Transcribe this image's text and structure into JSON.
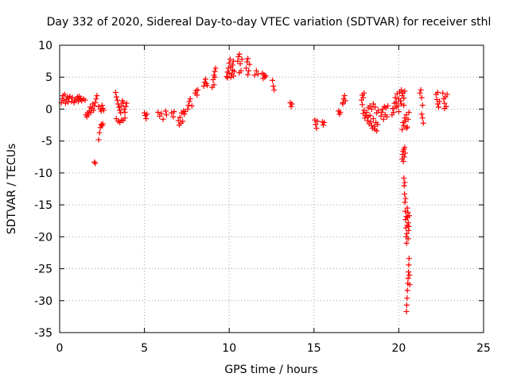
{
  "chart_data": {
    "type": "scatter",
    "title": "Day 332 of 2020, Sidereal Day-to-day VTEC variation (SDTVAR) for receiver sthl",
    "xlabel": "GPS time / hours",
    "ylabel": "SDTVAR / TECUs",
    "xlim": [
      0,
      25
    ],
    "ylim": [
      -35,
      10
    ],
    "xticks": [
      0,
      5,
      10,
      15,
      20,
      25
    ],
    "yticks": [
      10,
      5,
      0,
      -5,
      -10,
      -15,
      -20,
      -25,
      -30,
      -35
    ],
    "grid": true,
    "marker": "+",
    "color": "#ff0000",
    "series": [
      {
        "name": "SDTVAR",
        "points": [
          [
            0.1,
            1.0
          ],
          [
            0.15,
            1.6
          ],
          [
            0.2,
            2.1
          ],
          [
            0.25,
            1.3
          ],
          [
            0.3,
            2.3
          ],
          [
            0.35,
            0.9
          ],
          [
            0.4,
            1.5
          ],
          [
            0.45,
            1.9
          ],
          [
            0.5,
            1.1
          ],
          [
            0.55,
            1.7
          ],
          [
            0.6,
            2.0
          ],
          [
            0.7,
            1.2
          ],
          [
            0.75,
            1.8
          ],
          [
            0.85,
            1.0
          ],
          [
            0.9,
            1.4
          ],
          [
            1.0,
            1.6
          ],
          [
            1.05,
            1.9
          ],
          [
            1.1,
            1.2
          ],
          [
            1.15,
            2.0
          ],
          [
            1.2,
            1.5
          ],
          [
            1.25,
            1.7
          ],
          [
            1.3,
            1.3
          ],
          [
            1.4,
            1.6
          ],
          [
            1.5,
            1.4
          ],
          [
            1.55,
            -0.9
          ],
          [
            1.6,
            -1.2
          ],
          [
            1.65,
            -0.6
          ],
          [
            1.7,
            -0.9
          ],
          [
            1.75,
            -0.3
          ],
          [
            1.8,
            0.3
          ],
          [
            1.85,
            -0.5
          ],
          [
            1.9,
            0.1
          ],
          [
            1.95,
            0.8
          ],
          [
            2.0,
            -0.2
          ],
          [
            2.05,
            0.5
          ],
          [
            2.1,
            1.0
          ],
          [
            2.15,
            1.6
          ],
          [
            2.2,
            2.1
          ],
          [
            2.05,
            -8.3
          ],
          [
            2.1,
            -8.5
          ],
          [
            2.3,
            -4.8
          ],
          [
            2.35,
            -3.7
          ],
          [
            2.4,
            -2.9
          ],
          [
            2.45,
            -2.4
          ],
          [
            2.5,
            -2.6
          ],
          [
            2.55,
            -2.3
          ],
          [
            2.3,
            0.4
          ],
          [
            2.4,
            0.0
          ],
          [
            2.45,
            -0.3
          ],
          [
            2.5,
            0.6
          ],
          [
            2.55,
            0.1
          ],
          [
            2.6,
            -0.2
          ],
          [
            3.3,
            2.6
          ],
          [
            3.35,
            1.9
          ],
          [
            3.4,
            1.4
          ],
          [
            3.45,
            0.8
          ],
          [
            3.5,
            0.3
          ],
          [
            3.55,
            -0.2
          ],
          [
            3.6,
            -0.6
          ],
          [
            3.65,
            0.5
          ],
          [
            3.7,
            1.3
          ],
          [
            3.75,
            1.0
          ],
          [
            3.8,
            0.0
          ],
          [
            3.85,
            -0.5
          ],
          [
            3.9,
            0.4
          ],
          [
            3.95,
            0.9
          ],
          [
            3.35,
            -1.5
          ],
          [
            3.45,
            -1.9
          ],
          [
            3.55,
            -2.1
          ],
          [
            3.65,
            -1.7
          ],
          [
            3.75,
            -1.8
          ],
          [
            3.85,
            -1.4
          ],
          [
            5.0,
            -0.6
          ],
          [
            5.05,
            -1.0
          ],
          [
            5.1,
            -1.5
          ],
          [
            5.15,
            -0.8
          ],
          [
            5.8,
            -0.5
          ],
          [
            5.9,
            -1.1
          ],
          [
            6.0,
            -0.7
          ],
          [
            6.1,
            -1.6
          ],
          [
            6.25,
            -0.3
          ],
          [
            6.3,
            -0.9
          ],
          [
            6.6,
            -0.6
          ],
          [
            6.7,
            -1.2
          ],
          [
            6.75,
            -0.4
          ],
          [
            7.0,
            -1.8
          ],
          [
            7.05,
            -2.5
          ],
          [
            7.1,
            -1.3
          ],
          [
            7.15,
            -2.2
          ],
          [
            7.2,
            -0.6
          ],
          [
            7.25,
            -1.9
          ],
          [
            7.3,
            -0.3
          ],
          [
            7.35,
            -0.8
          ],
          [
            7.4,
            -0.4
          ],
          [
            7.55,
            0.0
          ],
          [
            7.6,
            0.6
          ],
          [
            7.65,
            1.2
          ],
          [
            7.7,
            1.6
          ],
          [
            7.8,
            0.5
          ],
          [
            8.0,
            2.5
          ],
          [
            8.05,
            2.9
          ],
          [
            8.1,
            2.2
          ],
          [
            8.15,
            3.0
          ],
          [
            8.5,
            3.6
          ],
          [
            8.55,
            4.2
          ],
          [
            8.6,
            4.7
          ],
          [
            8.65,
            4.0
          ],
          [
            8.7,
            3.7
          ],
          [
            9.0,
            3.4
          ],
          [
            9.05,
            4.6
          ],
          [
            9.1,
            5.3
          ],
          [
            9.15,
            5.9
          ],
          [
            9.2,
            6.4
          ],
          [
            9.1,
            3.8
          ],
          [
            9.15,
            5.0
          ],
          [
            9.85,
            5.1
          ],
          [
            9.9,
            5.8
          ],
          [
            9.95,
            6.4
          ],
          [
            10.0,
            7.2
          ],
          [
            10.05,
            7.8
          ],
          [
            10.1,
            6.6
          ],
          [
            10.15,
            5.5
          ],
          [
            10.2,
            6.9
          ],
          [
            10.25,
            5.2
          ],
          [
            10.3,
            5.9
          ],
          [
            9.9,
            4.9
          ],
          [
            10.0,
            5.6
          ],
          [
            10.1,
            5.0
          ],
          [
            10.2,
            6.1
          ],
          [
            10.25,
            7.5
          ],
          [
            10.5,
            7.5
          ],
          [
            10.55,
            8.2
          ],
          [
            10.6,
            8.6
          ],
          [
            10.65,
            7.1
          ],
          [
            10.7,
            6.0
          ],
          [
            10.75,
            7.8
          ],
          [
            10.6,
            5.7
          ],
          [
            11.0,
            6.4
          ],
          [
            11.05,
            7.4
          ],
          [
            11.1,
            7.9
          ],
          [
            11.15,
            6.0
          ],
          [
            11.2,
            7.0
          ],
          [
            11.1,
            5.4
          ],
          [
            11.5,
            5.3
          ],
          [
            11.6,
            6.0
          ],
          [
            11.7,
            5.5
          ],
          [
            11.95,
            5.6
          ],
          [
            12.0,
            4.8
          ],
          [
            12.05,
            5.4
          ],
          [
            12.1,
            5.0
          ],
          [
            12.15,
            5.2
          ],
          [
            12.55,
            4.5
          ],
          [
            12.6,
            3.6
          ],
          [
            12.65,
            3.0
          ],
          [
            13.6,
            1.0
          ],
          [
            13.65,
            0.4
          ],
          [
            13.7,
            0.8
          ],
          [
            15.05,
            -1.7
          ],
          [
            15.1,
            -2.4
          ],
          [
            15.15,
            -3.0
          ],
          [
            15.2,
            -1.9
          ],
          [
            15.5,
            -2.0
          ],
          [
            15.55,
            -2.5
          ],
          [
            15.6,
            -2.1
          ],
          [
            16.45,
            -0.3
          ],
          [
            16.5,
            -0.8
          ],
          [
            16.55,
            -0.5
          ],
          [
            16.7,
            0.8
          ],
          [
            16.75,
            1.6
          ],
          [
            16.8,
            2.1
          ],
          [
            16.85,
            1.3
          ],
          [
            16.7,
            1.0
          ],
          [
            17.8,
            1.4
          ],
          [
            17.85,
            2.2
          ],
          [
            17.9,
            1.8
          ],
          [
            17.95,
            2.5
          ],
          [
            17.85,
            0.7
          ],
          [
            17.9,
            -0.7
          ],
          [
            17.95,
            -0.2
          ],
          [
            18.0,
            -1.4
          ],
          [
            18.05,
            -1.0
          ],
          [
            18.1,
            -0.5
          ],
          [
            18.15,
            -1.8
          ],
          [
            18.2,
            -1.2
          ],
          [
            18.25,
            -2.3
          ],
          [
            18.3,
            -1.0
          ],
          [
            18.35,
            -2.0
          ],
          [
            18.4,
            -2.6
          ],
          [
            18.45,
            -3.0
          ],
          [
            18.5,
            -1.5
          ],
          [
            18.55,
            -2.7
          ],
          [
            18.6,
            -3.2
          ],
          [
            18.65,
            -2.1
          ],
          [
            18.7,
            -3.4
          ],
          [
            18.75,
            -2.4
          ],
          [
            18.2,
            0.2
          ],
          [
            18.3,
            0.5
          ],
          [
            18.4,
            0.0
          ],
          [
            18.5,
            0.8
          ],
          [
            18.6,
            0.3
          ],
          [
            18.7,
            -0.6
          ],
          [
            18.8,
            -0.2
          ],
          [
            18.95,
            -1.1
          ],
          [
            19.0,
            -0.5
          ],
          [
            19.05,
            0.0
          ],
          [
            19.1,
            -1.6
          ],
          [
            19.15,
            0.4
          ],
          [
            19.2,
            -0.9
          ],
          [
            19.25,
            0.2
          ],
          [
            19.3,
            -1.2
          ],
          [
            19.35,
            0.5
          ],
          [
            19.6,
            -0.9
          ],
          [
            19.65,
            0.1
          ],
          [
            19.7,
            -0.5
          ],
          [
            19.75,
            0.9
          ],
          [
            19.8,
            1.8
          ],
          [
            19.85,
            1.1
          ],
          [
            19.9,
            2.4
          ],
          [
            19.95,
            0.5
          ],
          [
            20.0,
            1.6
          ],
          [
            20.05,
            2.7
          ],
          [
            20.1,
            1.3
          ],
          [
            20.15,
            3.0
          ],
          [
            20.2,
            2.1
          ],
          [
            20.25,
            2.5
          ],
          [
            20.3,
            1.7
          ],
          [
            20.35,
            2.8
          ],
          [
            19.85,
            0.3
          ],
          [
            20.0,
            -0.4
          ],
          [
            20.15,
            0.8
          ],
          [
            20.3,
            0.6
          ],
          [
            20.2,
            -7.8
          ],
          [
            20.22,
            -7.1
          ],
          [
            20.25,
            -6.6
          ],
          [
            20.27,
            -8.2
          ],
          [
            20.3,
            -6.3
          ],
          [
            20.32,
            -7.5
          ],
          [
            20.35,
            -6.0
          ],
          [
            20.38,
            -6.9
          ],
          [
            20.2,
            -3.2
          ],
          [
            20.25,
            -2.1
          ],
          [
            20.3,
            -2.6
          ],
          [
            20.35,
            -1.4
          ],
          [
            20.4,
            -1.9
          ],
          [
            20.45,
            -0.9
          ],
          [
            20.5,
            -2.8
          ],
          [
            20.55,
            -1.6
          ],
          [
            20.6,
            -0.5
          ],
          [
            20.45,
            -3.0
          ],
          [
            20.3,
            -10.8
          ],
          [
            20.32,
            -12.0
          ],
          [
            20.34,
            -13.3
          ],
          [
            20.36,
            -14.6
          ],
          [
            20.38,
            -16.0
          ],
          [
            20.4,
            -17.3
          ],
          [
            20.42,
            -18.6
          ],
          [
            20.44,
            -20.0
          ],
          [
            20.46,
            -21.0
          ],
          [
            20.35,
            -11.5
          ],
          [
            20.4,
            -14.0
          ],
          [
            20.45,
            -16.8
          ],
          [
            20.48,
            -19.5
          ],
          [
            20.5,
            -18.2
          ],
          [
            20.52,
            -17.0
          ],
          [
            20.54,
            -16.2
          ],
          [
            20.56,
            -17.8
          ],
          [
            20.58,
            -19.0
          ],
          [
            20.6,
            -18.4
          ],
          [
            20.62,
            -16.7
          ],
          [
            20.5,
            -15.5
          ],
          [
            20.55,
            -20.3
          ],
          [
            20.45,
            -31.7
          ],
          [
            20.47,
            -30.7
          ],
          [
            20.49,
            -29.6
          ],
          [
            20.51,
            -28.4
          ],
          [
            20.53,
            -27.3
          ],
          [
            20.55,
            -26.5
          ],
          [
            20.57,
            -25.5
          ],
          [
            20.59,
            -24.4
          ],
          [
            20.61,
            -23.4
          ],
          [
            20.63,
            -26.0
          ],
          [
            20.65,
            -27.5
          ],
          [
            21.25,
            2.5
          ],
          [
            21.3,
            3.0
          ],
          [
            21.35,
            1.8
          ],
          [
            21.4,
            0.6
          ],
          [
            21.35,
            -0.8
          ],
          [
            21.4,
            -1.4
          ],
          [
            21.45,
            -2.2
          ],
          [
            22.2,
            2.3
          ],
          [
            22.25,
            1.5
          ],
          [
            22.3,
            0.8
          ],
          [
            22.35,
            0.3
          ],
          [
            22.3,
            2.6
          ],
          [
            22.4,
            1.2
          ],
          [
            22.6,
            2.5
          ],
          [
            22.65,
            1.6
          ],
          [
            22.7,
            0.9
          ],
          [
            22.75,
            1.9
          ],
          [
            22.8,
            0.4
          ],
          [
            22.85,
            2.3
          ],
          [
            22.7,
            0.1
          ]
        ]
      }
    ]
  }
}
